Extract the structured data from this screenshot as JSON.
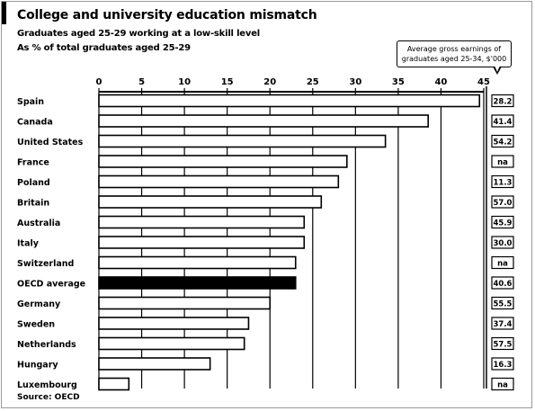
{
  "header": {
    "title": "College and university education mismatch",
    "subtitle": "Graduates aged 25-29 working at a low-skill level",
    "subtitle2": "As % of total graduates aged 25-29"
  },
  "callout": {
    "text": "Average gross earnings of graduates aged 25-34, $'000"
  },
  "footer": {
    "source": "Source: OECD"
  },
  "chart_data": {
    "type": "bar",
    "orientation": "horizontal",
    "title": "College and university education mismatch",
    "subtitle": "Graduates aged 25-29 working at a low-skill level",
    "xlabel": "As % of total graduates aged 25-29",
    "xlim": [
      0,
      45
    ],
    "xticks": [
      0,
      5,
      10,
      15,
      20,
      25,
      30,
      35,
      40,
      45
    ],
    "grid": true,
    "categories": [
      "Spain",
      "Canada",
      "United States",
      "France",
      "Poland",
      "Britain",
      "Australia",
      "Italy",
      "Switzerland",
      "OECD average",
      "Germany",
      "Sweden",
      "Netherlands",
      "Hungary",
      "Luxembourg"
    ],
    "highlight": "OECD average",
    "series": [
      {
        "values": [
          44.5,
          38.5,
          33.5,
          29,
          28,
          26,
          24,
          24,
          23,
          23,
          20,
          17.5,
          17,
          13,
          3.5
        ]
      }
    ],
    "earnings_label": "Average gross earnings of graduates aged 25-34, $'000",
    "earnings": [
      "28.2",
      "41.4",
      "54.2",
      "na",
      "11.3",
      "57.0",
      "45.9",
      "30.0",
      "na",
      "40.6",
      "55.5",
      "37.4",
      "57.5",
      "16.3",
      "na"
    ]
  }
}
